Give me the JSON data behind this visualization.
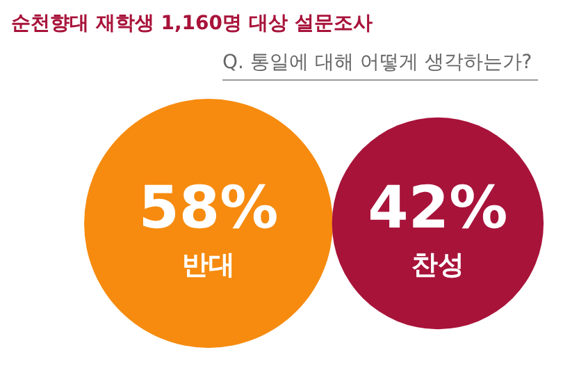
{
  "chart_data": {
    "type": "other",
    "title": "순천향대 재학생 1,160명 대상 설문조사",
    "subtitle": "Q. 통일에 대해 어떻게 생각하는가?",
    "categories": [
      "반대",
      "찬성"
    ],
    "values": [
      58,
      42
    ],
    "value_labels": [
      "58%",
      "42%"
    ],
    "colors": [
      "#f68b0f",
      "#a8133a"
    ]
  }
}
